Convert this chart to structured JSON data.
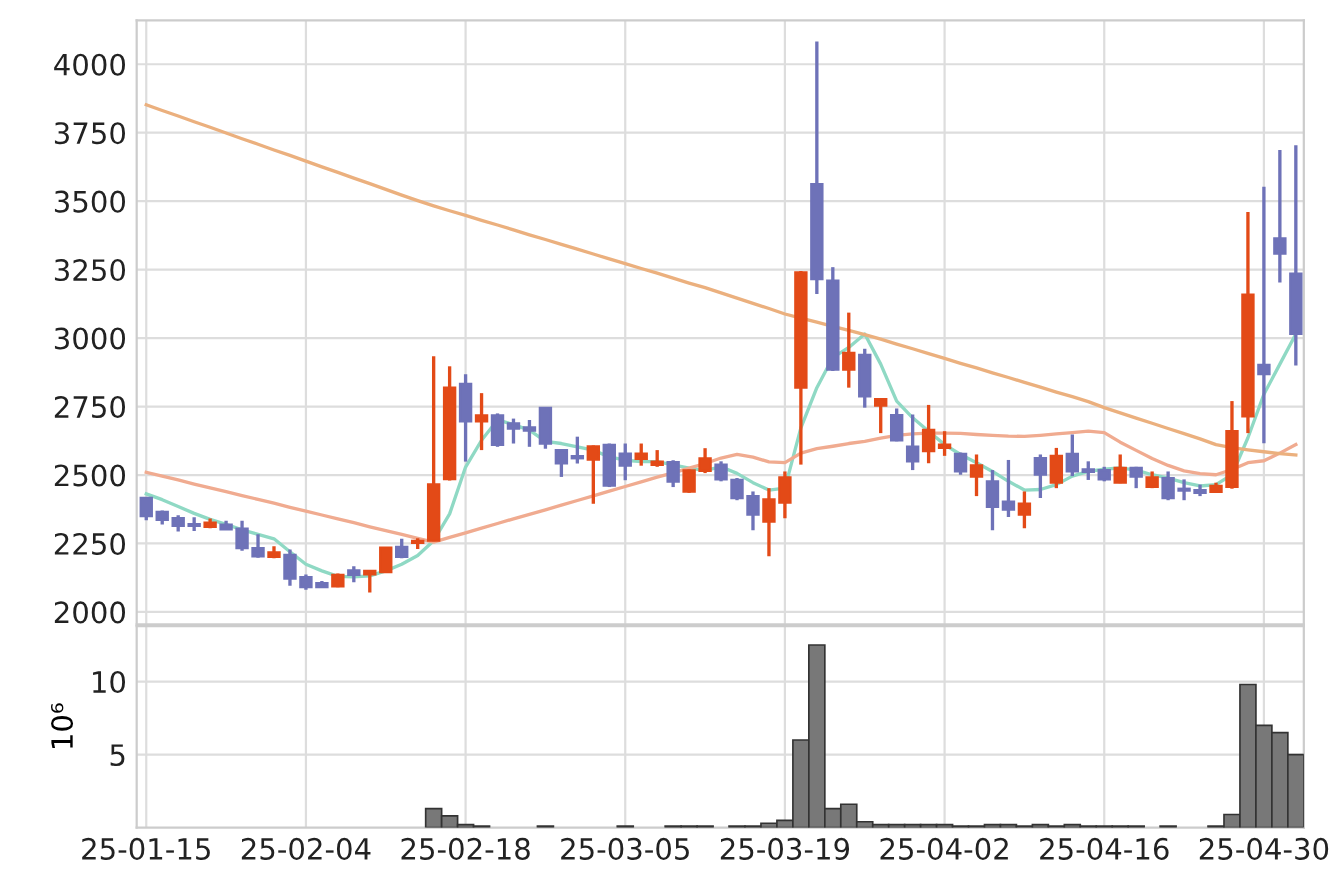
{
  "chart_data": [
    {
      "type": "candlestick",
      "categories": [
        null,
        null,
        null,
        null,
        null,
        null,
        null,
        null,
        null,
        null,
        null,
        null,
        null,
        null,
        null,
        null,
        null,
        null,
        null,
        null,
        null,
        null,
        null,
        null,
        null,
        null,
        null,
        null,
        null,
        null,
        null,
        null,
        null,
        null,
        null,
        null,
        null,
        null,
        null,
        null,
        null,
        null,
        null,
        null,
        null,
        null,
        null,
        null,
        null,
        null,
        null,
        null,
        null,
        null,
        null,
        null,
        null,
        null,
        null,
        null,
        null,
        null,
        null,
        null,
        null,
        null,
        null,
        null,
        null,
        null,
        null,
        null,
        null
      ],
      "ohlc": [
        [
          2417,
          2420,
          2335,
          2350
        ],
        [
          2365,
          2370,
          2319,
          2336
        ],
        [
          2343,
          2353,
          2294,
          2314
        ],
        [
          2321,
          2346,
          2296,
          2314
        ],
        [
          2311,
          2341,
          2306,
          2326
        ],
        [
          2319,
          2333,
          2299,
          2301
        ],
        [
          2304,
          2333,
          2223,
          2233
        ],
        [
          2233,
          2284,
          2198,
          2203
        ],
        [
          2201,
          2240,
          2196,
          2218
        ],
        [
          2208,
          2228,
          2096,
          2122
        ],
        [
          2127,
          2137,
          2081,
          2091
        ],
        [
          2105,
          2113,
          2088,
          2091
        ],
        [
          2093,
          2140,
          2090,
          2135
        ],
        [
          2152,
          2167,
          2108,
          2135
        ],
        [
          2137,
          2152,
          2071,
          2150
        ],
        [
          2145,
          2237,
          2143,
          2235
        ],
        [
          2238,
          2267,
          2196,
          2201
        ],
        [
          2252,
          2269,
          2230,
          2260
        ],
        [
          2260,
          2934,
          2258,
          2466
        ],
        [
          2485,
          2897,
          2480,
          2819
        ],
        [
          2833,
          2868,
          2549,
          2696
        ],
        [
          2696,
          2799,
          2591,
          2718
        ],
        [
          2718,
          2725,
          2603,
          2610
        ],
        [
          2689,
          2706,
          2615,
          2669
        ],
        [
          2674,
          2701,
          2603,
          2662
        ],
        [
          2745,
          2745,
          2596,
          2615
        ],
        [
          2591,
          2591,
          2493,
          2542
        ],
        [
          2569,
          2640,
          2542,
          2561
        ],
        [
          2556,
          2608,
          2395,
          2605
        ],
        [
          2610,
          2615,
          2456,
          2461
        ],
        [
          2578,
          2615,
          2481,
          2534
        ],
        [
          2559,
          2615,
          2534,
          2578
        ],
        [
          2537,
          2591,
          2530,
          2549
        ],
        [
          2547,
          2554,
          2456,
          2476
        ],
        [
          2439,
          2520,
          2435,
          2517
        ],
        [
          2515,
          2598,
          2507,
          2561
        ],
        [
          2538,
          2550,
          2477,
          2484
        ],
        [
          2482,
          2489,
          2408,
          2416
        ],
        [
          2423,
          2440,
          2298,
          2355
        ],
        [
          2330,
          2452,
          2203,
          2411
        ],
        [
          2399,
          2513,
          2342,
          2491
        ],
        [
          2819,
          3245,
          2538,
          3240
        ],
        [
          3562,
          4083,
          3161,
          3215
        ],
        [
          3210,
          3259,
          2880,
          2885
        ],
        [
          2885,
          3093,
          2819,
          2946
        ],
        [
          2939,
          2961,
          2746,
          2787
        ],
        [
          2753,
          2780,
          2653,
          2777
        ],
        [
          2719,
          2743,
          2623,
          2626
        ],
        [
          2604,
          2721,
          2518,
          2550
        ],
        [
          2587,
          2756,
          2543,
          2665
        ],
        [
          2599,
          2660,
          2570,
          2611
        ],
        [
          2577,
          2582,
          2501,
          2513
        ],
        [
          2494,
          2575,
          2423,
          2535
        ],
        [
          2477,
          2518,
          2298,
          2384
        ],
        [
          2403,
          2555,
          2347,
          2374
        ],
        [
          2355,
          2440,
          2306,
          2396
        ],
        [
          2562,
          2575,
          2416,
          2501
        ],
        [
          2472,
          2599,
          2452,
          2570
        ],
        [
          2577,
          2648,
          2496,
          2513
        ],
        [
          2521,
          2550,
          2482,
          2511
        ],
        [
          2518,
          2530,
          2477,
          2484
        ],
        [
          2472,
          2575,
          2470,
          2526
        ],
        [
          2526,
          2530,
          2452,
          2494
        ],
        [
          2457,
          2513,
          2452,
          2491
        ],
        [
          2489,
          2513,
          2408,
          2416
        ],
        [
          2450,
          2484,
          2408,
          2443
        ],
        [
          2445,
          2465,
          2423,
          2435
        ],
        [
          2438,
          2472,
          2435,
          2460
        ],
        [
          2457,
          2770,
          2450,
          2660
        ],
        [
          2714,
          3460,
          2653,
          3159
        ],
        [
          2902,
          3553,
          2616,
          2868
        ],
        [
          3364,
          3687,
          3203,
          3308
        ],
        [
          3235,
          3704,
          2900,
          3015
        ]
      ],
      "colors": [
        "#6e72b8",
        "#6e72b8",
        "#6e72b8",
        "#6e72b8",
        "#e34a17",
        "#6e72b8",
        "#6e72b8",
        "#6e72b8",
        "#e34a17",
        "#6e72b8",
        "#6e72b8",
        "#6e72b8",
        "#e34a17",
        "#6e72b8",
        "#e34a17",
        "#e34a17",
        "#6e72b8",
        "#e34a17",
        "#e34a17",
        "#e34a17",
        "#6e72b8",
        "#e34a17",
        "#6e72b8",
        "#6e72b8",
        "#6e72b8",
        "#6e72b8",
        "#6e72b8",
        "#6e72b8",
        "#e34a17",
        "#6e72b8",
        "#6e72b8",
        "#e34a17",
        "#e34a17",
        "#6e72b8",
        "#e34a17",
        "#e34a17",
        "#6e72b8",
        "#6e72b8",
        "#6e72b8",
        "#e34a17",
        "#e34a17",
        "#e34a17",
        "#6e72b8",
        "#6e72b8",
        "#e34a17",
        "#6e72b8",
        "#e34a17",
        "#6e72b8",
        "#6e72b8",
        "#e34a17",
        "#e34a17",
        "#6e72b8",
        "#e34a17",
        "#6e72b8",
        "#6e72b8",
        "#e34a17",
        "#6e72b8",
        "#e34a17",
        "#6e72b8",
        "#6e72b8",
        "#6e72b8",
        "#e34a17",
        "#6e72b8",
        "#e34a17",
        "#6e72b8",
        "#6e72b8",
        "#6e72b8",
        "#e34a17",
        "#e34a17",
        "#e34a17",
        "#6e72b8",
        "#6e72b8",
        "#6e72b8"
      ],
      "ylim": [
        1955,
        4160
      ],
      "yticks": [
        2000,
        2250,
        2500,
        2750,
        3000,
        3250,
        3500,
        3750,
        4000
      ],
      "grid": true,
      "tick_labels": "y",
      "series": [
        {
          "type": "line",
          "color": "#8fd9c4",
          "values": [
            2431,
            2410,
            2385,
            2360,
            2338,
            2320,
            2300,
            2283,
            2267,
            2220,
            2174,
            2150,
            2130,
            2128,
            2132,
            2150,
            2174,
            2206,
            2260,
            2358,
            2529,
            2627,
            2701,
            2684,
            2664,
            2623,
            2615,
            2603,
            2591,
            2566,
            2554,
            2549,
            2549,
            2537,
            2525,
            2517,
            2530,
            2506,
            2472,
            2445,
            2452,
            2672,
            2819,
            2929,
            2966,
            3015,
            2905,
            2770,
            2709,
            2660,
            2611,
            2575,
            2545,
            2513,
            2477,
            2445,
            2447,
            2465,
            2496,
            2513,
            2521,
            2526,
            2518,
            2501,
            2489,
            2472,
            2460,
            2465,
            2501,
            2636,
            2795,
            2905,
            3015
          ]
        },
        {
          "type": "line",
          "color": "#f0ab90",
          "values": [
            2510,
            2496,
            2482,
            2467,
            2453,
            2439,
            2425,
            2411,
            2397,
            2382,
            2368,
            2354,
            2340,
            2326,
            2311,
            2297,
            2283,
            2269,
            2255,
            2272,
            2289,
            2306,
            2323,
            2340,
            2356,
            2373,
            2390,
            2407,
            2424,
            2441,
            2458,
            2475,
            2492,
            2508,
            2525,
            2542,
            2562,
            2575,
            2565,
            2548,
            2545,
            2580,
            2596,
            2605,
            2615,
            2623,
            2635,
            2645,
            2650,
            2653,
            2653,
            2652,
            2648,
            2645,
            2642,
            2641,
            2645,
            2650,
            2655,
            2660,
            2655,
            2620,
            2590,
            2560,
            2535,
            2515,
            2505,
            2501,
            2520,
            2545,
            2552,
            2580,
            2611
          ]
        },
        {
          "type": "line",
          "color": "#ebb07e",
          "values": [
            3852,
            3831,
            3811,
            3790,
            3770,
            3749,
            3728,
            3708,
            3687,
            3667,
            3646,
            3625,
            3605,
            3584,
            3564,
            3543,
            3522,
            3502,
            3483,
            3465,
            3448,
            3430,
            3413,
            3395,
            3377,
            3360,
            3342,
            3325,
            3307,
            3289,
            3272,
            3254,
            3237,
            3219,
            3201,
            3184,
            3165,
            3146,
            3127,
            3108,
            3088,
            3073,
            3058,
            3043,
            3028,
            3013,
            2996,
            2978,
            2961,
            2943,
            2926,
            2908,
            2891,
            2873,
            2856,
            2838,
            2821,
            2803,
            2786,
            2768,
            2746,
            2727,
            2708,
            2689,
            2670,
            2651,
            2632,
            2611,
            2600,
            2592,
            2585,
            2578,
            2573
          ]
        }
      ]
    },
    {
      "type": "bar",
      "categories": [
        "25-01-15",
        null,
        null,
        null,
        null,
        null,
        null,
        null,
        null,
        null,
        "25-02-04",
        null,
        null,
        null,
        null,
        null,
        null,
        null,
        null,
        null,
        "25-02-18",
        null,
        null,
        null,
        null,
        null,
        null,
        null,
        null,
        null,
        "25-03-05",
        null,
        null,
        null,
        null,
        null,
        null,
        null,
        null,
        null,
        "25-03-19",
        null,
        null,
        null,
        null,
        null,
        null,
        null,
        null,
        null,
        "25-04-02",
        null,
        null,
        null,
        null,
        null,
        null,
        null,
        null,
        null,
        "25-04-16",
        null,
        null,
        null,
        null,
        null,
        null,
        null,
        null,
        null,
        "25-04-30",
        null,
        null
      ],
      "values": [
        0,
        0,
        0,
        0,
        0,
        0,
        0,
        0,
        0,
        0,
        0,
        0,
        0,
        0,
        0,
        0,
        0,
        0,
        1.3,
        0.8,
        0.2,
        0.1,
        0,
        0,
        0,
        0.1,
        0,
        0,
        0,
        0,
        0.1,
        0,
        0,
        0.1,
        0.1,
        0.1,
        0,
        0.1,
        0.1,
        0.3,
        0.5,
        6.0,
        12.5,
        1.3,
        1.6,
        0.4,
        0.2,
        0.2,
        0.2,
        0.2,
        0.2,
        0.1,
        0.1,
        0.2,
        0.2,
        0.1,
        0.2,
        0.1,
        0.2,
        0.1,
        0.1,
        0.1,
        0.1,
        0,
        0.1,
        0,
        0,
        0.1,
        0.9,
        9.8,
        7.0,
        6.5,
        5.0
      ],
      "color": "#787878",
      "ylim": [
        0,
        13.8
      ],
      "yticks": [
        5,
        10
      ],
      "ylabel": "10⁶",
      "grid": true
    }
  ]
}
